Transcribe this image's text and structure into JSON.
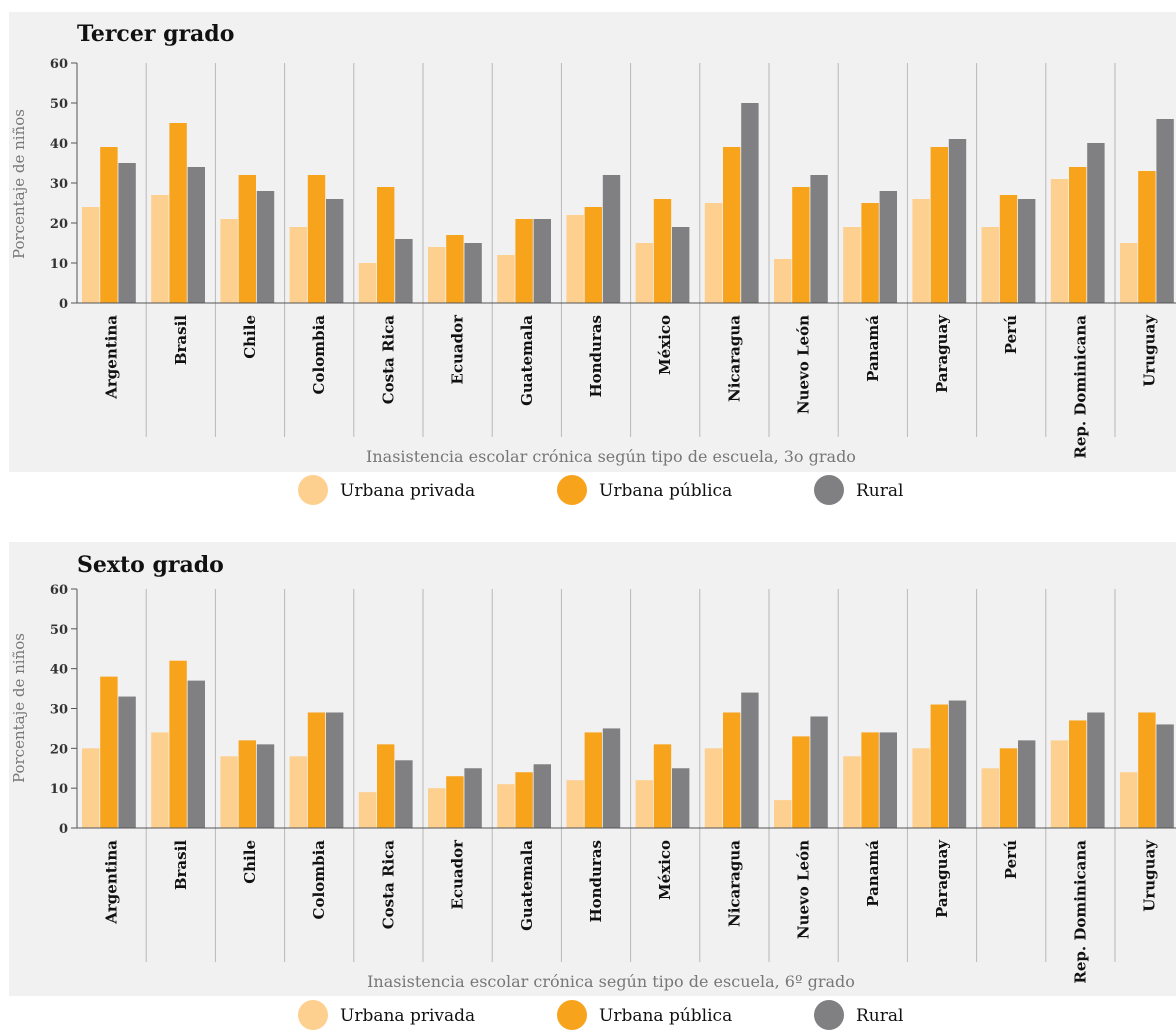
{
  "colors": {
    "urbana_privada": "#fdd08f",
    "urbana_publica": "#f7a31c",
    "rural": "#808083",
    "panel_bg": "#f1f1f1",
    "divider": "#b8b8b8"
  },
  "legend": [
    "Urbana privada",
    "Urbana pública",
    "Rural"
  ],
  "chart_data": [
    {
      "type": "bar",
      "title": "Tercer grado",
      "ylabel": "Porcentaje de niños",
      "xlabel": "Inasistencia escolar crónica según tipo de escuela, 3o grado",
      "ylim": [
        0,
        60
      ],
      "yticks": [
        0,
        10,
        20,
        30,
        40,
        50,
        60
      ],
      "grid": false,
      "legend_position": "bottom",
      "categories": [
        "Argentina",
        "Brasil",
        "Chile",
        "Colombia",
        "Costa Rica",
        "Ecuador",
        "Guatemala",
        "Honduras",
        "México",
        "Nicaragua",
        "Nuevo León",
        "Panamá",
        "Paraguay",
        "Perú",
        "Rep. Dominicana",
        "Uruguay"
      ],
      "series": [
        {
          "name": "Urbana privada",
          "values": [
            24,
            27,
            21,
            19,
            10,
            14,
            12,
            22,
            15,
            25,
            11,
            19,
            26,
            19,
            31,
            15
          ]
        },
        {
          "name": "Urbana pública",
          "values": [
            39,
            45,
            32,
            32,
            29,
            17,
            21,
            24,
            26,
            39,
            29,
            25,
            39,
            27,
            34,
            33
          ]
        },
        {
          "name": "Rural",
          "values": [
            35,
            34,
            28,
            26,
            16,
            15,
            21,
            32,
            19,
            50,
            32,
            28,
            41,
            26,
            40,
            46
          ]
        }
      ]
    },
    {
      "type": "bar",
      "title": "Sexto grado",
      "ylabel": "Porcentaje de niños",
      "xlabel": "Inasistencia escolar crónica según tipo de escuela, 6º grado",
      "ylim": [
        0,
        60
      ],
      "yticks": [
        0,
        10,
        20,
        30,
        40,
        50,
        60
      ],
      "grid": false,
      "legend_position": "bottom",
      "categories": [
        "Argentina",
        "Brasil",
        "Chile",
        "Colombia",
        "Costa Rica",
        "Ecuador",
        "Guatemala",
        "Honduras",
        "México",
        "Nicaragua",
        "Nuevo León",
        "Panamá",
        "Paraguay",
        "Perú",
        "Rep. Dominicana",
        "Uruguay"
      ],
      "series": [
        {
          "name": "Urbana privada",
          "values": [
            20,
            24,
            18,
            18,
            9,
            10,
            11,
            12,
            12,
            20,
            7,
            18,
            20,
            15,
            22,
            14
          ]
        },
        {
          "name": "Urbana pública",
          "values": [
            38,
            42,
            22,
            29,
            21,
            13,
            14,
            24,
            21,
            29,
            23,
            24,
            31,
            20,
            27,
            29
          ]
        },
        {
          "name": "Rural",
          "values": [
            33,
            37,
            21,
            29,
            17,
            15,
            16,
            25,
            15,
            34,
            28,
            24,
            32,
            22,
            29,
            26
          ]
        }
      ]
    }
  ]
}
